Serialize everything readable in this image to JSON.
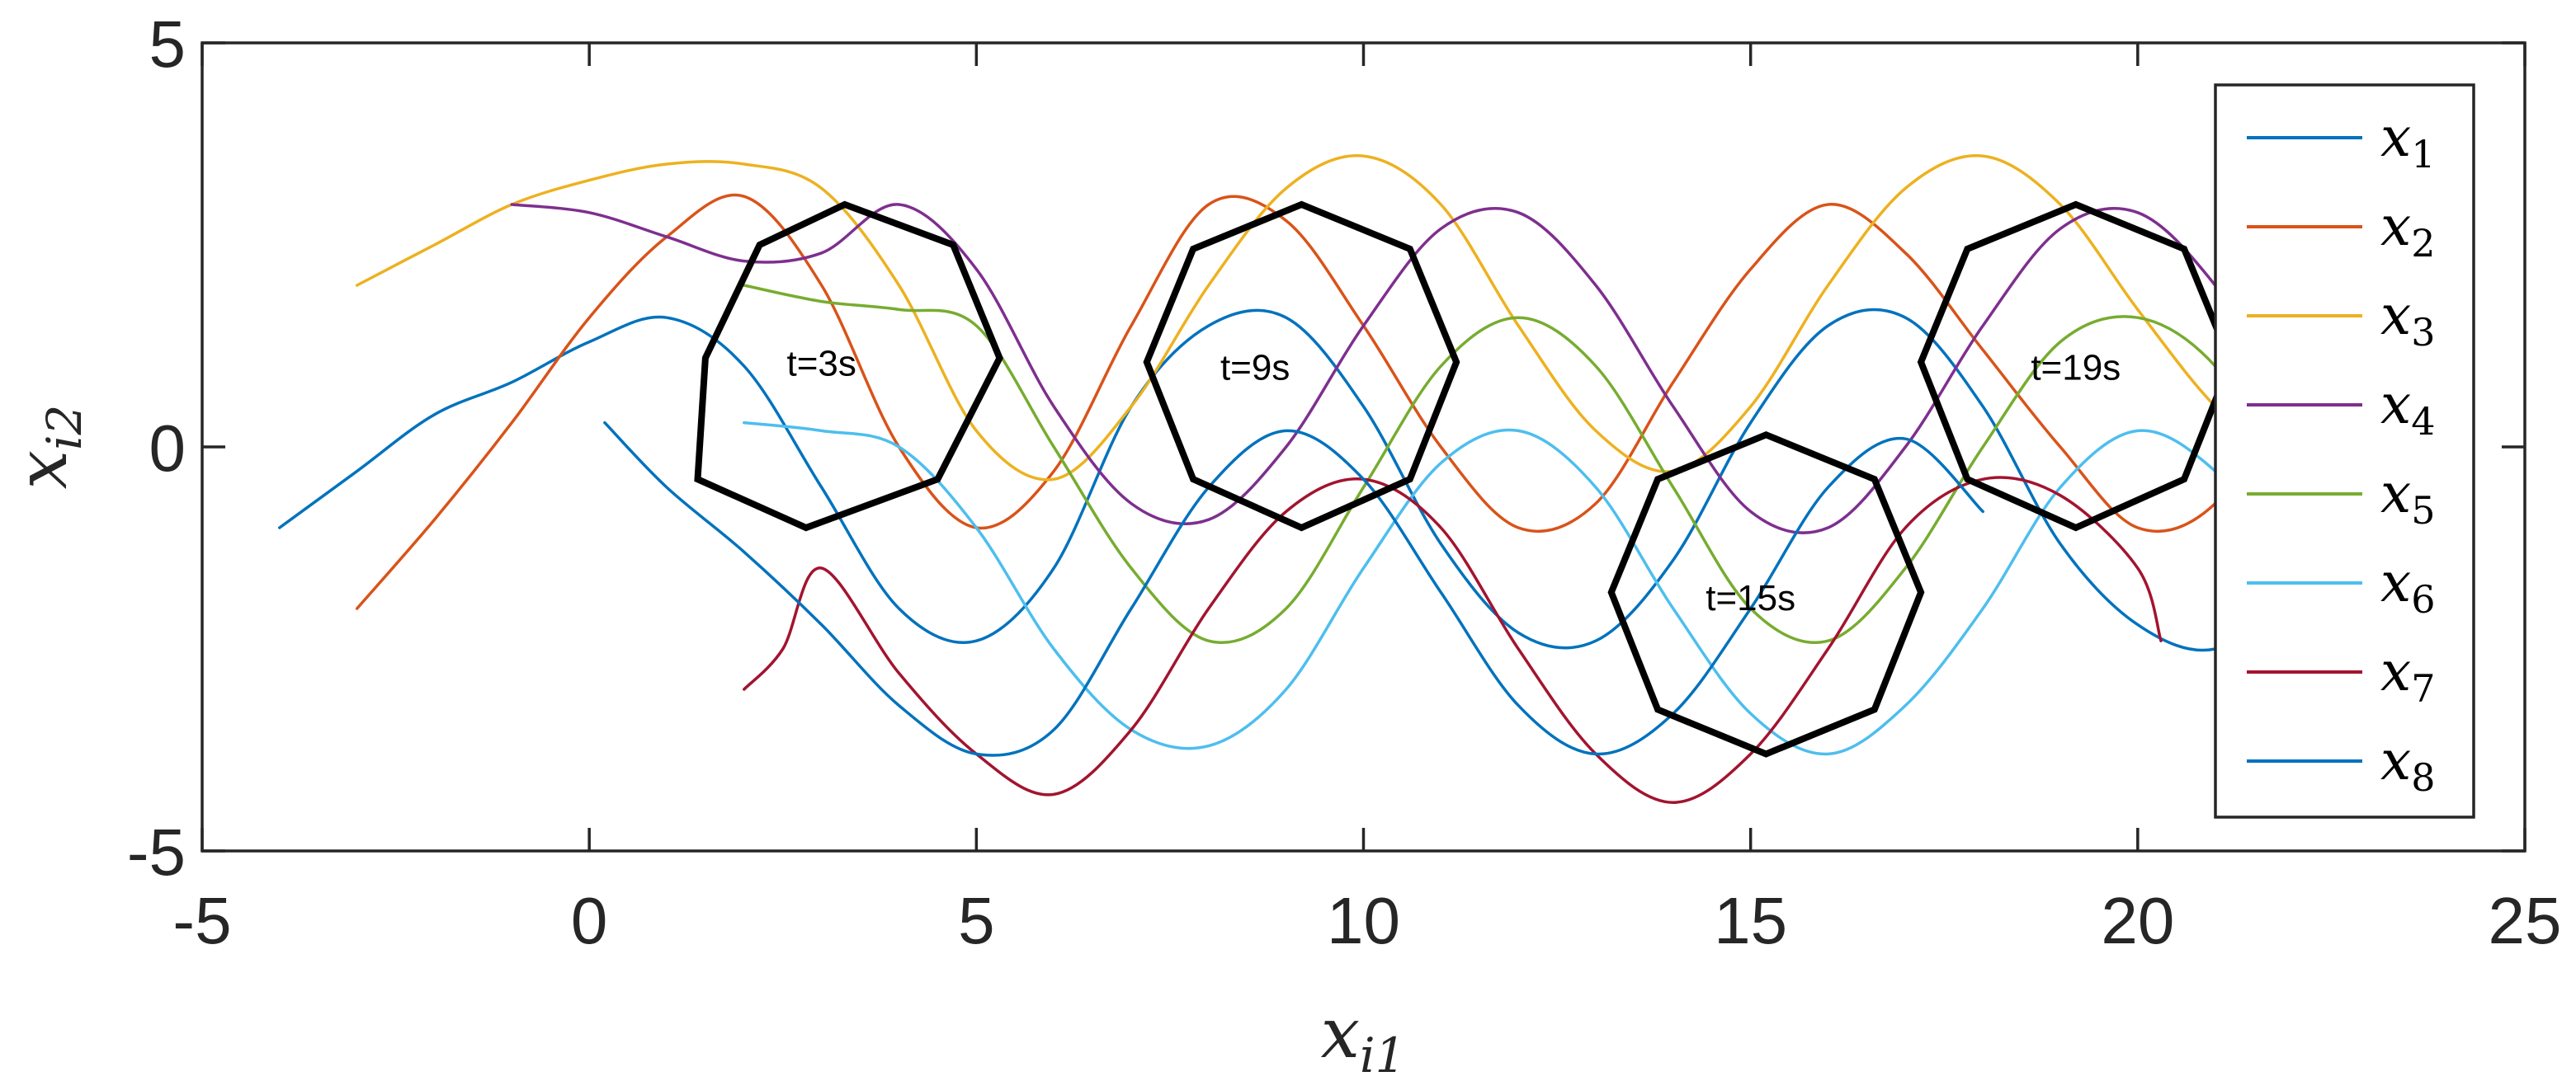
{
  "chart_data": {
    "type": "line",
    "title": "",
    "xlabel": {
      "base": "x",
      "sub": "i1"
    },
    "ylabel": {
      "base": "x",
      "sub": "i2"
    },
    "xlim": [
      -5,
      25
    ],
    "ylim": [
      -5,
      5
    ],
    "xticks": [
      -5,
      0,
      5,
      10,
      15,
      20,
      25
    ],
    "yticks": [
      -5,
      0,
      5
    ],
    "xtick_labels": [
      "-5",
      "0",
      "5",
      "10",
      "15",
      "20",
      "25"
    ],
    "ytick_labels": [
      "-5",
      "0",
      "5"
    ],
    "grid": false,
    "legend_position": "right",
    "series": [
      {
        "name": "x",
        "sub": "1",
        "color": "#0072BD",
        "points": [
          [
            -4.0,
            -1.0
          ],
          [
            -3.0,
            -0.3
          ],
          [
            -2.0,
            0.4
          ],
          [
            -1.0,
            0.8
          ],
          [
            0.0,
            1.3
          ],
          [
            1.0,
            1.6
          ],
          [
            2.0,
            1.0
          ],
          [
            3.0,
            -0.5
          ],
          [
            4.0,
            -2.0
          ],
          [
            5.0,
            -2.4
          ],
          [
            6.0,
            -1.5
          ],
          [
            7.0,
            0.5
          ],
          [
            8.0,
            1.5
          ],
          [
            9.0,
            1.6
          ],
          [
            10.0,
            0.5
          ],
          [
            11.0,
            -1.2
          ],
          [
            12.0,
            -2.3
          ],
          [
            13.0,
            -2.4
          ],
          [
            14.0,
            -1.4
          ],
          [
            15.0,
            0.3
          ],
          [
            16.0,
            1.5
          ],
          [
            17.0,
            1.6
          ],
          [
            18.0,
            0.5
          ],
          [
            19.0,
            -1.2
          ],
          [
            20.0,
            -2.2
          ],
          [
            21.0,
            -2.5
          ],
          [
            22.0,
            -1.8
          ],
          [
            23.0,
            -0.4
          ]
        ]
      },
      {
        "name": "x",
        "sub": "2",
        "color": "#D95319",
        "points": [
          [
            -3.0,
            -2.0
          ],
          [
            -2.0,
            -0.9
          ],
          [
            -1.0,
            0.3
          ],
          [
            0.0,
            1.6
          ],
          [
            1.0,
            2.6
          ],
          [
            2.0,
            3.1
          ],
          [
            3.0,
            2.0
          ],
          [
            4.0,
            0.0
          ],
          [
            5.0,
            -1.0
          ],
          [
            6.0,
            -0.3
          ],
          [
            7.0,
            1.5
          ],
          [
            8.0,
            3.0
          ],
          [
            9.0,
            2.8
          ],
          [
            10.0,
            1.5
          ],
          [
            11.0,
            0.0
          ],
          [
            12.0,
            -1.0
          ],
          [
            13.0,
            -0.7
          ],
          [
            14.0,
            0.8
          ],
          [
            15.0,
            2.2
          ],
          [
            16.0,
            3.0
          ],
          [
            17.0,
            2.4
          ],
          [
            18.0,
            1.2
          ],
          [
            19.0,
            0.0
          ],
          [
            20.0,
            -1.0
          ],
          [
            21.0,
            -0.7
          ],
          [
            22.0,
            0.8
          ],
          [
            23.0,
            2.2
          ]
        ]
      },
      {
        "name": "x",
        "sub": "3",
        "color": "#EDB120",
        "points": [
          [
            -3.0,
            2.0
          ],
          [
            -2.0,
            2.5
          ],
          [
            -1.0,
            3.0
          ],
          [
            0.0,
            3.3
          ],
          [
            1.0,
            3.5
          ],
          [
            2.0,
            3.5
          ],
          [
            3.0,
            3.2
          ],
          [
            4.0,
            2.0
          ],
          [
            5.0,
            0.2
          ],
          [
            6.0,
            -0.4
          ],
          [
            7.0,
            0.5
          ],
          [
            8.0,
            2.0
          ],
          [
            9.0,
            3.2
          ],
          [
            10.0,
            3.6
          ],
          [
            11.0,
            3.0
          ],
          [
            12.0,
            1.5
          ],
          [
            13.0,
            0.2
          ],
          [
            14.0,
            -0.3
          ],
          [
            15.0,
            0.5
          ],
          [
            16.0,
            2.0
          ],
          [
            17.0,
            3.2
          ],
          [
            18.0,
            3.6
          ],
          [
            19.0,
            3.0
          ],
          [
            20.0,
            1.7
          ],
          [
            21.0,
            0.5
          ],
          [
            22.0,
            -0.3
          ],
          [
            23.0,
            0.2
          ]
        ]
      },
      {
        "name": "x",
        "sub": "4",
        "color": "#7E2F8E",
        "points": [
          [
            -1.0,
            3.0
          ],
          [
            0.0,
            2.9
          ],
          [
            1.0,
            2.6
          ],
          [
            2.0,
            2.3
          ],
          [
            3.0,
            2.4
          ],
          [
            4.0,
            3.0
          ],
          [
            5.0,
            2.2
          ],
          [
            6.0,
            0.5
          ],
          [
            7.0,
            -0.7
          ],
          [
            8.0,
            -0.9
          ],
          [
            9.0,
            0.0
          ],
          [
            10.0,
            1.5
          ],
          [
            11.0,
            2.7
          ],
          [
            12.0,
            2.9
          ],
          [
            13.0,
            2.0
          ],
          [
            14.0,
            0.5
          ],
          [
            15.0,
            -0.8
          ],
          [
            16.0,
            -1.0
          ],
          [
            17.0,
            0.0
          ],
          [
            18.0,
            1.5
          ],
          [
            19.0,
            2.7
          ],
          [
            20.0,
            2.9
          ],
          [
            21.0,
            2.0
          ],
          [
            22.0,
            0.5
          ],
          [
            23.0,
            -0.8
          ]
        ]
      },
      {
        "name": "x",
        "sub": "5",
        "color": "#77AC30",
        "points": [
          [
            2.0,
            2.0
          ],
          [
            3.0,
            1.8
          ],
          [
            4.0,
            1.7
          ],
          [
            5.0,
            1.5
          ],
          [
            6.0,
            0.0
          ],
          [
            7.0,
            -1.5
          ],
          [
            8.0,
            -2.4
          ],
          [
            9.0,
            -2.0
          ],
          [
            10.0,
            -0.5
          ],
          [
            11.0,
            1.0
          ],
          [
            12.0,
            1.6
          ],
          [
            13.0,
            1.0
          ],
          [
            14.0,
            -0.5
          ],
          [
            15.0,
            -2.0
          ],
          [
            16.0,
            -2.4
          ],
          [
            17.0,
            -1.5
          ],
          [
            18.0,
            0.0
          ],
          [
            19.0,
            1.3
          ],
          [
            20.0,
            1.6
          ],
          [
            21.0,
            1.0
          ],
          [
            22.0,
            -0.5
          ],
          [
            23.0,
            -2.0
          ]
        ]
      },
      {
        "name": "x",
        "sub": "6",
        "color": "#4DBEEE",
        "points": [
          [
            2.0,
            0.3
          ],
          [
            3.0,
            0.2
          ],
          [
            4.0,
            0.0
          ],
          [
            5.0,
            -1.0
          ],
          [
            6.0,
            -2.5
          ],
          [
            7.0,
            -3.5
          ],
          [
            8.0,
            -3.7
          ],
          [
            9.0,
            -3.0
          ],
          [
            10.0,
            -1.5
          ],
          [
            11.0,
            -0.2
          ],
          [
            12.0,
            0.2
          ],
          [
            13.0,
            -0.5
          ],
          [
            14.0,
            -2.0
          ],
          [
            15.0,
            -3.3
          ],
          [
            16.0,
            -3.8
          ],
          [
            17.0,
            -3.2
          ],
          [
            18.0,
            -2.0
          ],
          [
            19.0,
            -0.5
          ],
          [
            20.0,
            0.2
          ],
          [
            21.0,
            -0.3
          ],
          [
            22.0,
            -1.5
          ],
          [
            23.0,
            -3.0
          ]
        ]
      },
      {
        "name": "x",
        "sub": "7",
        "color": "#A2142F",
        "points": [
          [
            2.0,
            -3.0
          ],
          [
            2.5,
            -2.5
          ],
          [
            3.0,
            -1.5
          ],
          [
            4.0,
            -2.8
          ],
          [
            5.0,
            -3.8
          ],
          [
            6.0,
            -4.3
          ],
          [
            7.0,
            -3.5
          ],
          [
            8.0,
            -2.0
          ],
          [
            9.0,
            -0.8
          ],
          [
            10.0,
            -0.4
          ],
          [
            11.0,
            -1.0
          ],
          [
            12.0,
            -2.5
          ],
          [
            13.0,
            -3.8
          ],
          [
            14.0,
            -4.4
          ],
          [
            15.0,
            -3.8
          ],
          [
            16.0,
            -2.5
          ],
          [
            17.0,
            -1.0
          ],
          [
            18.0,
            -0.4
          ],
          [
            19.0,
            -0.6
          ],
          [
            20.0,
            -1.5
          ],
          [
            20.3,
            -2.4
          ]
        ]
      },
      {
        "name": "x",
        "sub": "8",
        "color": "#0072BD",
        "points": [
          [
            0.2,
            0.3
          ],
          [
            1.0,
            -0.5
          ],
          [
            2.0,
            -1.3
          ],
          [
            3.0,
            -2.2
          ],
          [
            4.0,
            -3.2
          ],
          [
            5.0,
            -3.8
          ],
          [
            6.0,
            -3.5
          ],
          [
            7.0,
            -2.0
          ],
          [
            8.0,
            -0.5
          ],
          [
            9.0,
            0.2
          ],
          [
            10.0,
            -0.4
          ],
          [
            11.0,
            -1.8
          ],
          [
            12.0,
            -3.2
          ],
          [
            13.0,
            -3.8
          ],
          [
            14.0,
            -3.3
          ],
          [
            15.0,
            -2.0
          ],
          [
            16.0,
            -0.5
          ],
          [
            17.0,
            0.1
          ],
          [
            18.0,
            -0.8
          ]
        ]
      }
    ],
    "formations": [
      {
        "label": "t=3s",
        "label_at": [
          3.0,
          1.0
        ],
        "vertices": [
          [
            3.3,
            3.0
          ],
          [
            4.7,
            2.5
          ],
          [
            5.3,
            1.1
          ],
          [
            4.5,
            -0.4
          ],
          [
            2.8,
            -1.0
          ],
          [
            1.4,
            -0.4
          ],
          [
            1.5,
            1.1
          ],
          [
            2.2,
            2.5
          ]
        ]
      },
      {
        "label": "t=9s",
        "label_at": [
          8.6,
          0.95
        ],
        "vertices": [
          [
            9.2,
            3.0
          ],
          [
            10.6,
            2.45
          ],
          [
            11.2,
            1.05
          ],
          [
            10.6,
            -0.4
          ],
          [
            9.2,
            -1.0
          ],
          [
            7.8,
            -0.4
          ],
          [
            7.2,
            1.05
          ],
          [
            7.8,
            2.45
          ]
        ]
      },
      {
        "label": "t=15s",
        "label_at": [
          15.0,
          -1.9
        ],
        "vertices": [
          [
            15.2,
            0.15
          ],
          [
            16.6,
            -0.4
          ],
          [
            17.2,
            -1.8
          ],
          [
            16.6,
            -3.25
          ],
          [
            15.2,
            -3.8
          ],
          [
            13.8,
            -3.25
          ],
          [
            13.2,
            -1.8
          ],
          [
            13.8,
            -0.4
          ]
        ]
      },
      {
        "label": "t=19s",
        "label_at": [
          19.2,
          0.95
        ],
        "vertices": [
          [
            19.2,
            3.0
          ],
          [
            20.6,
            2.45
          ],
          [
            21.2,
            1.05
          ],
          [
            20.6,
            -0.4
          ],
          [
            19.2,
            -1.0
          ],
          [
            17.8,
            -0.4
          ],
          [
            17.2,
            1.05
          ],
          [
            17.8,
            2.45
          ]
        ]
      }
    ]
  }
}
